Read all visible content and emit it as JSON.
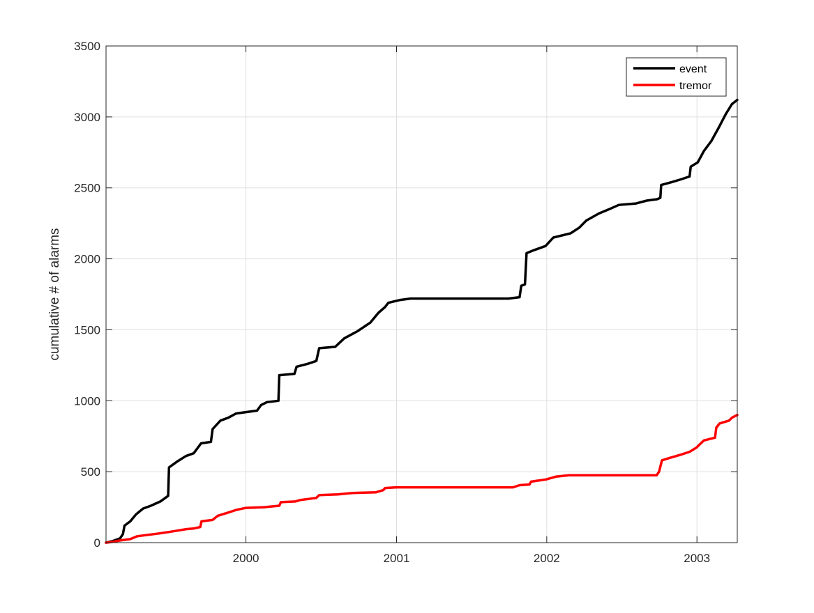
{
  "chart_data": {
    "type": "line",
    "title": "",
    "xlabel": "",
    "ylabel": "cumulative # of alarms",
    "xlim": [
      "1999-01-26",
      "2003-04-09"
    ],
    "ylim": [
      0,
      3500
    ],
    "x_ticks": [
      "2000-01-01",
      "2001-01-01",
      "2002-01-01",
      "2003-01-01"
    ],
    "x_tick_labels": [
      "2000",
      "2001",
      "2002",
      "2003"
    ],
    "y_ticks": [
      0,
      500,
      1000,
      1500,
      2000,
      2500,
      3000,
      3500
    ],
    "y_tick_labels": [
      "0",
      "500",
      "1000",
      "1500",
      "2000",
      "2500",
      "3000",
      "3500"
    ],
    "grid": true,
    "legend_position": "top-right",
    "series": [
      {
        "name": "event",
        "color": "#000000",
        "points": [
          [
            "1999-01-26",
            0
          ],
          [
            "1999-02-10",
            10
          ],
          [
            "1999-03-01",
            30
          ],
          [
            "1999-03-08",
            60
          ],
          [
            "1999-03-12",
            120
          ],
          [
            "1999-03-26",
            150
          ],
          [
            "1999-04-09",
            200
          ],
          [
            "1999-04-26",
            240
          ],
          [
            "1999-05-15",
            260
          ],
          [
            "1999-06-07",
            290
          ],
          [
            "1999-06-26",
            330
          ],
          [
            "1999-06-28",
            530
          ],
          [
            "1999-07-17",
            570
          ],
          [
            "1999-08-08",
            610
          ],
          [
            "1999-08-27",
            630
          ],
          [
            "1999-09-14",
            700
          ],
          [
            "1999-10-08",
            710
          ],
          [
            "1999-10-12",
            800
          ],
          [
            "1999-10-31",
            860
          ],
          [
            "1999-11-19",
            880
          ],
          [
            "1999-12-08",
            910
          ],
          [
            "2000-01-01",
            920
          ],
          [
            "2000-01-28",
            930
          ],
          [
            "2000-02-07",
            970
          ],
          [
            "2000-02-21",
            990
          ],
          [
            "2000-03-20",
            1000
          ],
          [
            "2000-03-22",
            1180
          ],
          [
            "2000-04-28",
            1190
          ],
          [
            "2000-05-03",
            1240
          ],
          [
            "2000-05-30",
            1260
          ],
          [
            "2000-06-20",
            1280
          ],
          [
            "2000-06-27",
            1370
          ],
          [
            "2000-08-05",
            1380
          ],
          [
            "2000-08-27",
            1440
          ],
          [
            "2000-09-28",
            1490
          ],
          [
            "2000-10-29",
            1550
          ],
          [
            "2000-11-18",
            1620
          ],
          [
            "2000-12-04",
            1660
          ],
          [
            "2000-12-12",
            1690
          ],
          [
            "2001-01-10",
            1710
          ],
          [
            "2001-02-04",
            1720
          ],
          [
            "2001-09-30",
            1720
          ],
          [
            "2001-10-27",
            1730
          ],
          [
            "2001-10-31",
            1810
          ],
          [
            "2001-11-09",
            1820
          ],
          [
            "2001-11-13",
            2040
          ],
          [
            "2001-11-30",
            2060
          ],
          [
            "2001-12-29",
            2090
          ],
          [
            "2002-01-17",
            2150
          ],
          [
            "2002-02-28",
            2180
          ],
          [
            "2002-03-21",
            2220
          ],
          [
            "2002-04-07",
            2270
          ],
          [
            "2002-05-08",
            2320
          ],
          [
            "2002-06-02",
            2350
          ],
          [
            "2002-06-25",
            2380
          ],
          [
            "2002-08-06",
            2390
          ],
          [
            "2002-09-01",
            2410
          ],
          [
            "2002-09-26",
            2420
          ],
          [
            "2002-10-04",
            2430
          ],
          [
            "2002-10-06",
            2520
          ],
          [
            "2002-10-31",
            2540
          ],
          [
            "2002-11-23",
            2560
          ],
          [
            "2002-12-14",
            2580
          ],
          [
            "2002-12-17",
            2650
          ],
          [
            "2003-01-03",
            2680
          ],
          [
            "2003-01-18",
            2760
          ],
          [
            "2003-02-05",
            2830
          ],
          [
            "2003-02-24",
            2930
          ],
          [
            "2003-03-12",
            3020
          ],
          [
            "2003-03-27",
            3090
          ],
          [
            "2003-04-09",
            3120
          ]
        ]
      },
      {
        "name": "tremor",
        "color": "#ff0000",
        "points": [
          [
            "1999-01-26",
            0
          ],
          [
            "1999-02-10",
            5
          ],
          [
            "1999-03-01",
            15
          ],
          [
            "1999-03-26",
            25
          ],
          [
            "1999-04-12",
            45
          ],
          [
            "1999-05-08",
            55
          ],
          [
            "1999-06-04",
            65
          ],
          [
            "1999-06-28",
            75
          ],
          [
            "1999-07-19",
            85
          ],
          [
            "1999-08-09",
            95
          ],
          [
            "1999-08-28",
            100
          ],
          [
            "1999-09-12",
            110
          ],
          [
            "1999-09-15",
            150
          ],
          [
            "1999-10-12",
            160
          ],
          [
            "1999-10-25",
            190
          ],
          [
            "1999-11-17",
            210
          ],
          [
            "1999-12-08",
            230
          ],
          [
            "2000-01-01",
            245
          ],
          [
            "2000-02-15",
            250
          ],
          [
            "2000-03-22",
            260
          ],
          [
            "2000-03-26",
            285
          ],
          [
            "2000-04-30",
            290
          ],
          [
            "2000-05-11",
            300
          ],
          [
            "2000-06-20",
            315
          ],
          [
            "2000-06-27",
            335
          ],
          [
            "2000-08-11",
            340
          ],
          [
            "2000-09-15",
            350
          ],
          [
            "2000-11-12",
            355
          ],
          [
            "2000-11-30",
            370
          ],
          [
            "2000-12-04",
            385
          ],
          [
            "2001-01-01",
            390
          ],
          [
            "2001-10-11",
            390
          ],
          [
            "2001-10-27",
            405
          ],
          [
            "2001-11-20",
            410
          ],
          [
            "2001-11-24",
            430
          ],
          [
            "2001-12-30",
            445
          ],
          [
            "2002-01-23",
            465
          ],
          [
            "2002-02-24",
            475
          ],
          [
            "2002-09-25",
            475
          ],
          [
            "2002-10-01",
            500
          ],
          [
            "2002-10-08",
            580
          ],
          [
            "2002-10-30",
            600
          ],
          [
            "2002-11-23",
            620
          ],
          [
            "2002-12-14",
            640
          ],
          [
            "2002-12-31",
            670
          ],
          [
            "2003-01-07",
            690
          ],
          [
            "2003-01-18",
            720
          ],
          [
            "2003-02-14",
            740
          ],
          [
            "2003-02-17",
            810
          ],
          [
            "2003-02-25",
            840
          ],
          [
            "2003-03-20",
            860
          ],
          [
            "2003-03-27",
            880
          ],
          [
            "2003-04-09",
            900
          ]
        ]
      }
    ]
  }
}
